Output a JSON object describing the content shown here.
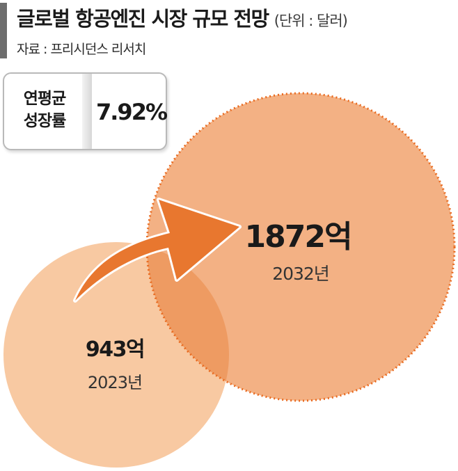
{
  "header": {
    "title": "글로벌 항공엔진 시장 규모 전망",
    "unit": "(단위 : 달러)",
    "source": "자료 : 프리시던스 리서치"
  },
  "cagr": {
    "label": "연평균\n성장률",
    "value": "7.92%"
  },
  "chart_data": {
    "type": "bubble",
    "title": "글로벌 항공엔진 시장 규모 전망",
    "unit": "달러",
    "categories": [
      "2023년",
      "2032년"
    ],
    "values": [
      943,
      1872
    ],
    "value_labels": [
      "943억",
      "1872억"
    ],
    "value_unit_word": "억",
    "cagr": 7.92,
    "colors": {
      "2023": "#f8c9a2",
      "2032": "#f3b184",
      "overlap": "#ef9a5f",
      "arrow": "#e8772f",
      "dots": "#e96a1f"
    }
  }
}
